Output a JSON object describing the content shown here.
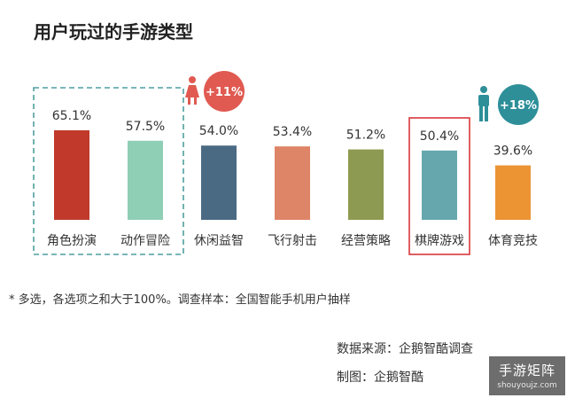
{
  "title": "用户玩过的手游类型",
  "chart_data": {
    "type": "bar",
    "title": "用户玩过的手游类型",
    "categories": [
      "角色扮演",
      "动作冒险",
      "休闲益智",
      "飞行射击",
      "经营策略",
      "棋牌游戏",
      "体育竞技"
    ],
    "values": [
      65.1,
      57.5,
      54.0,
      53.4,
      51.2,
      50.4,
      39.6
    ],
    "value_labels": [
      "65.1%",
      "57.5%",
      "54.0%",
      "53.4%",
      "51.2%",
      "50.4%",
      "39.6%"
    ],
    "bar_colors": [
      "#c0392b",
      "#8ecfb6",
      "#4a6a84",
      "#de8467",
      "#8d9a51",
      "#66a7ad",
      "#ec9334"
    ],
    "ylim": [
      0,
      100
    ],
    "grid": false,
    "annotations": {
      "female": {
        "label": "+11%",
        "icon": "female-icon",
        "color": "#e05a52",
        "icon_color": "#e05a52",
        "highlight_categories": [
          "角色扮演",
          "动作冒险"
        ],
        "box_style": "dashed",
        "box_color": "#4f9ea0"
      },
      "male": {
        "label": "+18%",
        "icon": "male-icon",
        "color": "#2e8f99",
        "icon_color": "#2e8f99",
        "highlight_categories": [
          "棋牌游戏"
        ],
        "box_style": "solid",
        "box_color": "#d9373b"
      }
    }
  },
  "footnote": "*    多选，各选项之和大于100%。调查样本：全国智能手机用户抽样",
  "source": "数据来源：企鹅智酷调查",
  "made_by": "制图：企鹅智酷",
  "watermark": {
    "name": "手游矩阵",
    "url": "shouyoujz.com"
  }
}
